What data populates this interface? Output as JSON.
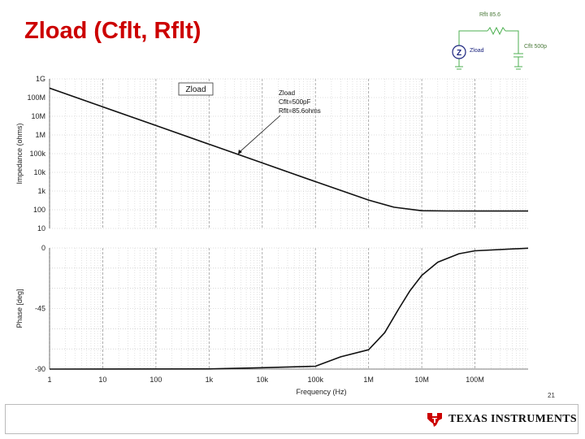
{
  "slide": {
    "title": "Zload (Cflt, Rflt)",
    "page_number": "21",
    "brand": "Texas Instruments",
    "brand_color": "#cc0000"
  },
  "schematic": {
    "resistor_label": "Rflt 85.6",
    "capacitor_label": "Cflt 500p",
    "meter_label": "Zload",
    "meter_symbol": "Z",
    "wire_color": "#4caf50",
    "label_color": "#1a237e"
  },
  "chart_data": [
    {
      "type": "line",
      "title": "",
      "legend_box": "Zload",
      "xlabel": "Frequency (Hz)",
      "ylabel": "Impedance (ohms)",
      "xscale": "log",
      "yscale": "log",
      "xlim": [
        1,
        1000000000
      ],
      "ylim": [
        10,
        1000000000
      ],
      "x_tick_labels": [
        "1",
        "10",
        "100",
        "1k",
        "10k",
        "100k",
        "1M",
        "10M",
        "100M"
      ],
      "y_tick_labels": [
        "1G",
        "100M",
        "10M",
        "1M",
        "100k",
        "10k",
        "1k",
        "100",
        "10"
      ],
      "grid": true,
      "annotation": {
        "lines": [
          "Zload",
          "Cflt=500pF",
          "Rflt=85.6ohms"
        ],
        "x": 3500,
        "y": 91000
      },
      "series": [
        {
          "name": "Zload",
          "x": [
            0.1,
            1,
            10,
            100,
            1000,
            10000,
            100000,
            1000000,
            3000000,
            10000000,
            30000000,
            100000000,
            300000000,
            1000000000
          ],
          "values": [
            3180000000,
            318000000,
            31800000,
            3180000,
            318000,
            31800,
            3180,
            329,
            136,
            88.5,
            85.9,
            85.6,
            85.6,
            85.6
          ]
        }
      ]
    },
    {
      "type": "line",
      "title": "",
      "xlabel": "Frequency (Hz)",
      "ylabel": "Phase [deg]",
      "xscale": "log",
      "xlim": [
        1,
        1000000000
      ],
      "ylim": [
        -90,
        0
      ],
      "x_tick_labels": [
        "1",
        "10",
        "100",
        "1k",
        "10k",
        "100k",
        "1M",
        "10M",
        "100M"
      ],
      "y_tick_labels": [
        "0",
        "-45",
        "-90"
      ],
      "grid": true,
      "series": [
        {
          "x": [
            1,
            1000,
            10000,
            100000,
            300000,
            1000000,
            2000000,
            3718000,
            6000000,
            10000000,
            20000000,
            50000000,
            100000000,
            1000000000
          ],
          "values": [
            -90,
            -89.9,
            -89.0,
            -87.9,
            -80.9,
            -75.6,
            -63.0,
            -45.0,
            -31.8,
            -20.4,
            -10.6,
            -4.3,
            -2.1,
            -0.2
          ]
        }
      ]
    }
  ]
}
